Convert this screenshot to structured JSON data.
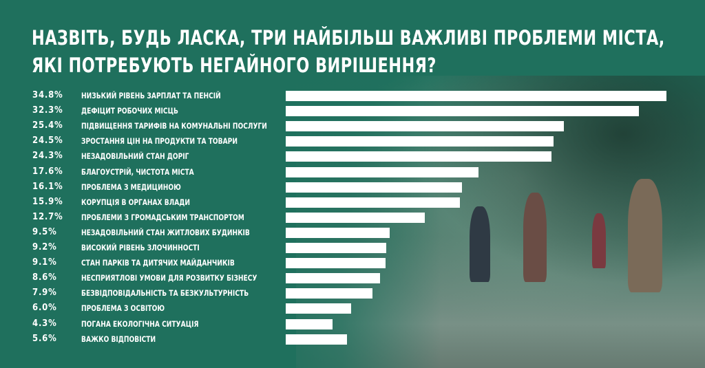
{
  "title_line1": "НАЗВІТЬ, БУДЬ ЛАСКА, ТРИ НАЙБІЛЬШ ВАЖЛИВІ ПРОБЛЕМИ МІСТА,",
  "title_line2": "ЯКІ ПОТРЕБУЮТЬ НЕГАЙНОГО ВИРІШЕННЯ?",
  "colors": {
    "background": "#1f705d",
    "bar": "#ffffff",
    "text": "#ffffff"
  },
  "chart_data": {
    "type": "bar",
    "orientation": "horizontal",
    "xlim": [
      0,
      34.8
    ],
    "categories": [
      "НИЗЬКИЙ РІВЕНЬ ЗАРПЛАТ ТА ПЕНСІЙ",
      "ДЕФІЦИТ РОБОЧИХ МІСЦЬ",
      "ПІДВИЩЕННЯ ТАРИФІВ НА КОМУНАЛЬНІ ПОСЛУГИ",
      "ЗРОСТАННЯ ЦІН НА ПРОДУКТИ ТА ТОВАРИ",
      "НЕЗАДОВІЛЬНИЙ СТАН ДОРІГ",
      "БЛАГОУСТРІЙ, ЧИСТОТА МІСТА",
      "ПРОБЛЕМА З МЕДИЦИНОЮ",
      "КОРУПЦІЯ В ОРГАНАХ ВЛАДИ",
      "ПРОБЛЕМИ З ГРОМАДСЬКИМ ТРАНСПОРТОМ",
      "НЕЗАДОВІЛЬНИЙ СТАН ЖИТЛОВИХ БУДИНКІВ",
      "ВИСОКИЙ РІВЕНЬ ЗЛОЧИННОСТІ",
      "СТАН ПАРКІВ ТА ДИТЯЧИХ МАЙДАНЧИКІВ",
      "НЕСПРИЯТЛОВІ УМОВИ ДЛЯ РОЗВИТКУ БІЗНЕСУ",
      "БЕЗВІДПОВІДАЛЬНІСТЬ ТА БЕЗКУЛЬТУРНІСТЬ",
      "ПРОБЛЕМА З ОСВІТОЮ",
      "ПОГАНА ЕКОЛОГІЧНА СИТУАЦІЯ",
      "ВАЖКО ВІДПОВІСТИ"
    ],
    "values": [
      34.8,
      32.3,
      25.4,
      24.5,
      24.3,
      17.6,
      16.1,
      15.9,
      12.7,
      9.5,
      9.2,
      9.1,
      8.6,
      7.9,
      6.0,
      4.3,
      5.6
    ],
    "value_labels": [
      "34.8%",
      "32.3%",
      "25.4%",
      "24.5%",
      "24.3%",
      "17.6%",
      "16.1%",
      "15.9%",
      "12.7%",
      "9.5%",
      "9.2%",
      "9.1%",
      "8.6%",
      "7.9%",
      "6.0%",
      "4.3%",
      "5.6%"
    ]
  }
}
